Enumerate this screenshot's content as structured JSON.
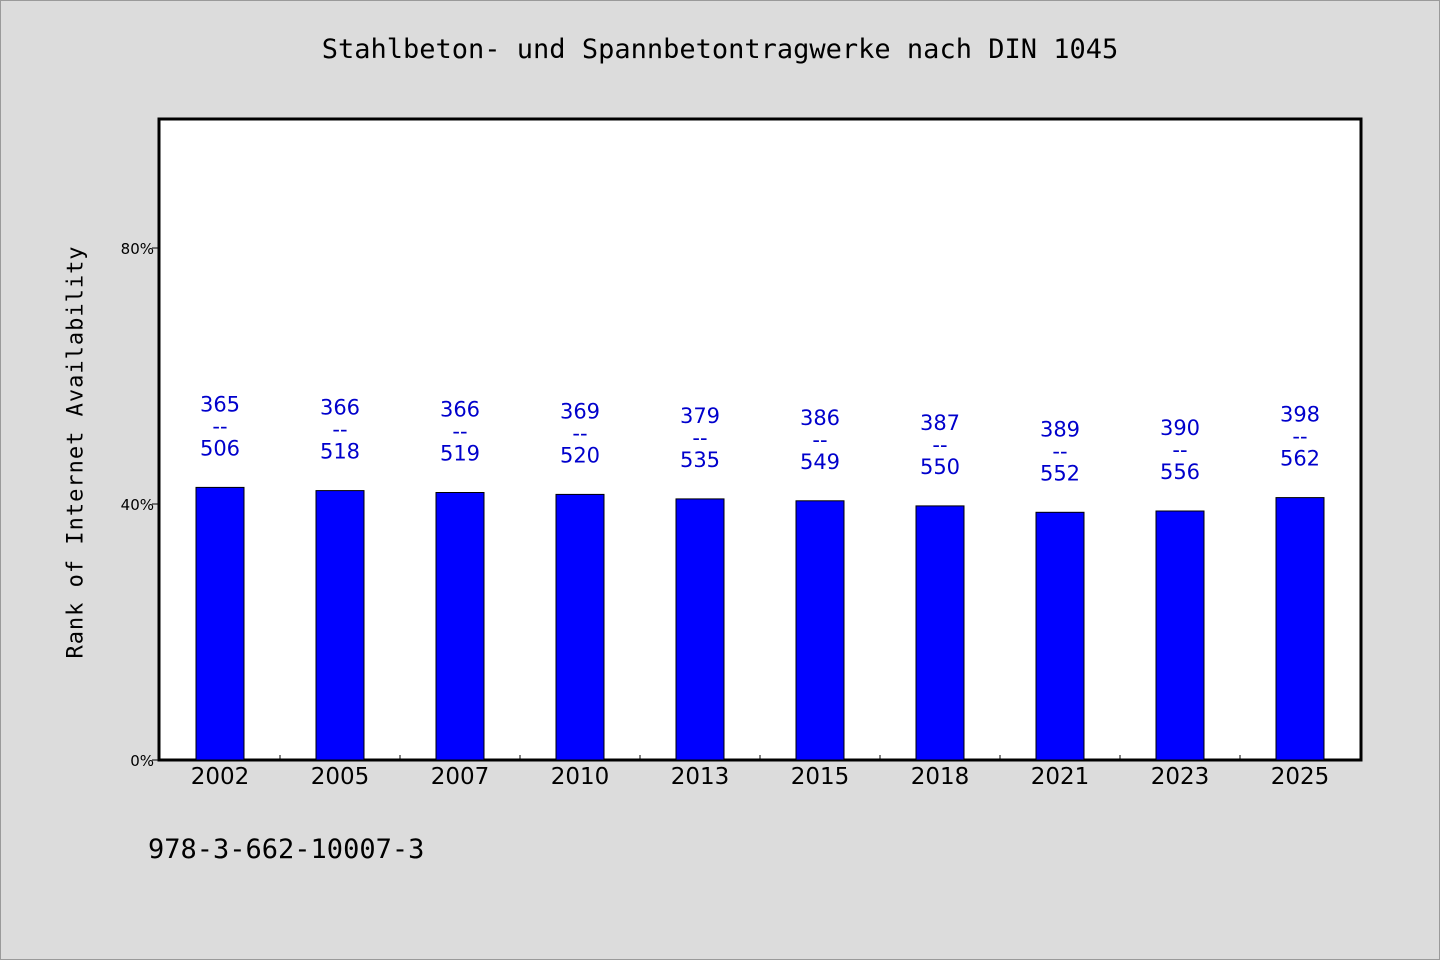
{
  "chart_data": {
    "type": "bar",
    "title": "Stahlbeton- und Spannbetontragwerke nach DIN 1045",
    "xlabel": "",
    "ylabel": "Rank of Internet Availability",
    "categories": [
      "2002",
      "2005",
      "2007",
      "2010",
      "2013",
      "2015",
      "2018",
      "2021",
      "2023",
      "2025"
    ],
    "values": [
      42.6,
      42.1,
      41.8,
      41.5,
      40.8,
      40.5,
      39.7,
      38.7,
      38.9,
      41.0
    ],
    "annotations": [
      {
        "top": "365",
        "sep": "--",
        "bottom": "506"
      },
      {
        "top": "366",
        "sep": "--",
        "bottom": "518"
      },
      {
        "top": "366",
        "sep": "--",
        "bottom": "519"
      },
      {
        "top": "369",
        "sep": "--",
        "bottom": "520"
      },
      {
        "top": "379",
        "sep": "--",
        "bottom": "535"
      },
      {
        "top": "386",
        "sep": "--",
        "bottom": "549"
      },
      {
        "top": "387",
        "sep": "--",
        "bottom": "550"
      },
      {
        "top": "389",
        "sep": "--",
        "bottom": "552"
      },
      {
        "top": "390",
        "sep": "--",
        "bottom": "556"
      },
      {
        "top": "398",
        "sep": "--",
        "bottom": "562"
      }
    ],
    "ylim": [
      0,
      100
    ],
    "yticks": [
      0,
      40,
      80
    ],
    "ytick_labels": [
      "0%",
      "40%",
      "80%"
    ],
    "grid": false,
    "colors": {
      "bar": "#0000ff",
      "annotation": "#0000cc",
      "plot_background": "#ffffff",
      "page_background": "#dcdcdc"
    }
  },
  "footer": {
    "isbn": "978-3-662-10007-3"
  }
}
